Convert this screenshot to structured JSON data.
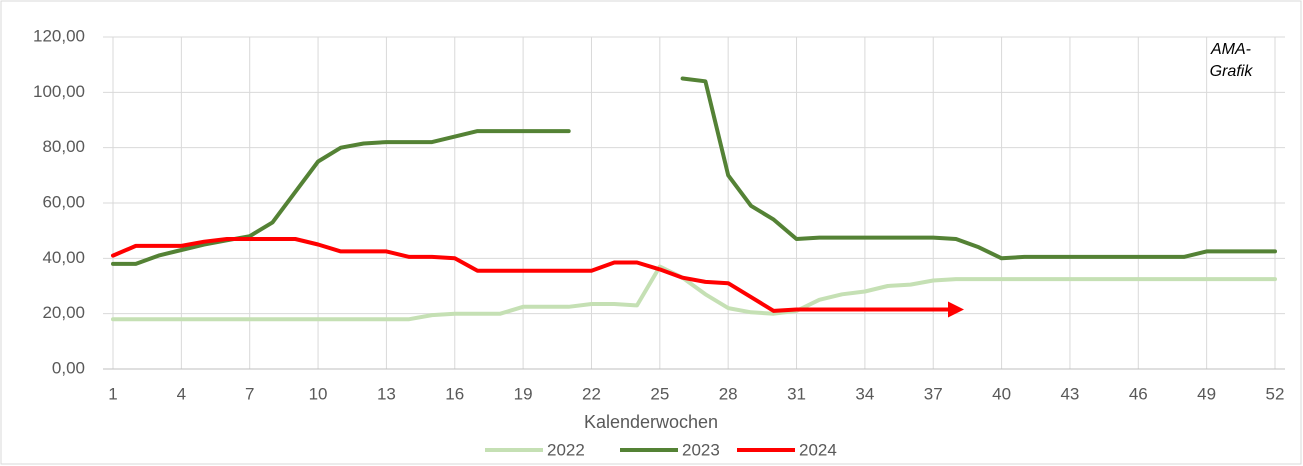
{
  "chart_data": {
    "type": "line",
    "x_label": "Kalenderwochen",
    "annotations": [
      "AMA-",
      "Grafik"
    ],
    "x": [
      1,
      2,
      3,
      4,
      5,
      6,
      7,
      8,
      9,
      10,
      11,
      12,
      13,
      14,
      15,
      16,
      17,
      18,
      19,
      20,
      21,
      22,
      23,
      24,
      25,
      26,
      27,
      28,
      29,
      30,
      31,
      32,
      33,
      34,
      35,
      36,
      37,
      38,
      39,
      40,
      41,
      42,
      43,
      44,
      45,
      46,
      47,
      48,
      49,
      50,
      51,
      52
    ],
    "xlim": [
      1,
      52
    ],
    "xticks": [
      1,
      4,
      7,
      10,
      13,
      16,
      19,
      22,
      25,
      28,
      31,
      34,
      37,
      40,
      43,
      46,
      49,
      52
    ],
    "ylim": [
      0,
      120
    ],
    "yticks": [
      {
        "value": 0,
        "label": "0,00"
      },
      {
        "value": 20,
        "label": "20,00"
      },
      {
        "value": 40,
        "label": "40,00"
      },
      {
        "value": 60,
        "label": "60,00"
      },
      {
        "value": 80,
        "label": "80,00"
      },
      {
        "value": 100,
        "label": "100,00"
      },
      {
        "value": 120,
        "label": "120,00"
      }
    ],
    "grid": true,
    "legend": "bottom",
    "series": [
      {
        "name": "2022",
        "color": "#c5e0b4",
        "values": [
          18,
          18,
          18,
          18,
          18,
          18,
          18,
          18,
          18,
          18,
          18,
          18,
          18,
          18,
          19.5,
          20,
          20,
          20,
          22.5,
          22.5,
          22.5,
          23.5,
          23.5,
          23,
          37,
          33,
          27,
          22,
          20.5,
          20,
          21,
          25,
          27,
          28,
          30,
          30.5,
          32,
          32.5,
          32.5,
          32.5,
          32.5,
          32.5,
          32.5,
          32.5,
          32.5,
          32.5,
          32.5,
          32.5,
          32.5,
          32.5,
          32.5,
          32.5
        ]
      },
      {
        "name": "2023",
        "color": "#548235",
        "values": [
          38,
          38,
          41,
          43,
          45,
          46.5,
          48,
          53,
          64,
          75,
          80,
          81.5,
          82,
          82,
          82,
          84,
          86,
          86,
          86,
          86,
          86,
          null,
          null,
          null,
          null,
          105,
          104,
          70,
          59,
          54,
          47,
          47.5,
          47.5,
          47.5,
          47.5,
          47.5,
          47.5,
          47,
          44,
          40,
          40.5,
          40.5,
          40.5,
          40.5,
          40.5,
          40.5,
          40.5,
          40.5,
          42.5,
          42.5,
          42.5,
          42.5
        ]
      },
      {
        "name": "2024",
        "color": "#ff0000",
        "values": [
          41,
          44.5,
          44.5,
          44.5,
          46,
          47,
          47,
          47,
          47,
          45,
          42.5,
          42.5,
          42.5,
          40.5,
          40.5,
          40,
          35.5,
          35.5,
          35.5,
          35.5,
          35.5,
          35.5,
          38.5,
          38.5,
          36,
          33,
          31.5,
          31,
          26,
          21,
          21.5,
          21.5,
          21.5,
          21.5,
          21.5,
          21.5,
          21.5,
          21.5,
          null,
          null,
          null,
          null,
          null,
          null,
          null,
          null,
          null,
          null,
          null,
          null,
          null,
          null
        ]
      }
    ]
  }
}
